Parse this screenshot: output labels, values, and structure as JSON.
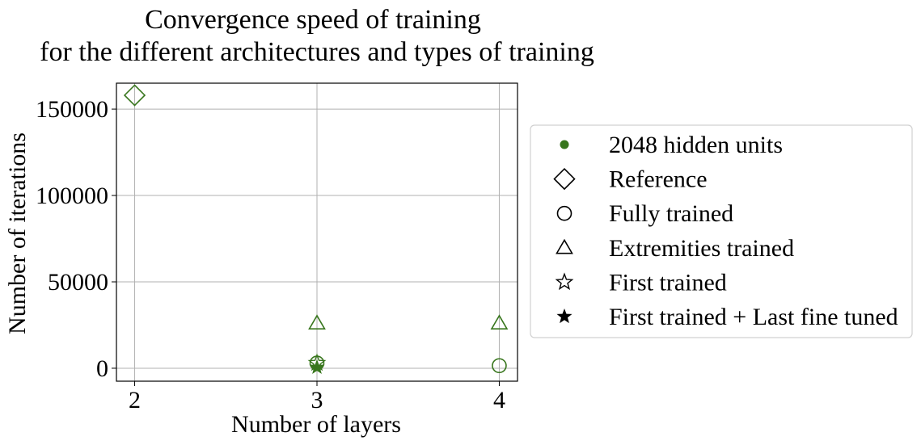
{
  "chart_data": {
    "type": "scatter",
    "title": [
      "Convergence speed of training",
      "for the different architectures and types of training"
    ],
    "xlabel": "Number of layers",
    "ylabel": "Number of iterations",
    "xlim": [
      1.9,
      4.1
    ],
    "ylim": [
      -7500,
      165000
    ],
    "xticks": [
      2,
      3,
      4
    ],
    "xtick_labels": [
      "2",
      "3",
      "4"
    ],
    "yticks": [
      0,
      50000,
      100000,
      150000
    ],
    "ytick_labels": [
      "0",
      "50000",
      "100000",
      "150000"
    ],
    "grid": true,
    "legend_position": "right",
    "color": "#38761d",
    "legend": [
      {
        "label": "2048 hidden units",
        "marker": "dot"
      },
      {
        "label": "Reference",
        "marker": "diamond"
      },
      {
        "label": "Fully trained",
        "marker": "circle"
      },
      {
        "label": "Extremities trained",
        "marker": "triangle"
      },
      {
        "label": "First trained",
        "marker": "star-open"
      },
      {
        "label": "First trained + Last fine tuned",
        "marker": "star-filled"
      }
    ],
    "series": [
      {
        "name": "Reference",
        "marker": "diamond",
        "points": [
          {
            "x": 2,
            "y": 158000
          }
        ]
      },
      {
        "name": "Fully trained",
        "marker": "circle",
        "points": [
          {
            "x": 3,
            "y": 3000
          },
          {
            "x": 4,
            "y": 1500
          }
        ]
      },
      {
        "name": "Extremities trained",
        "marker": "triangle",
        "points": [
          {
            "x": 3,
            "y": 26000
          },
          {
            "x": 4,
            "y": 26000
          }
        ]
      },
      {
        "name": "First trained",
        "marker": "star-open",
        "points": [
          {
            "x": 3,
            "y": 3000
          }
        ]
      },
      {
        "name": "First trained + Last fine tuned",
        "marker": "star-filled",
        "points": [
          {
            "x": 3,
            "y": 500
          }
        ]
      }
    ]
  }
}
